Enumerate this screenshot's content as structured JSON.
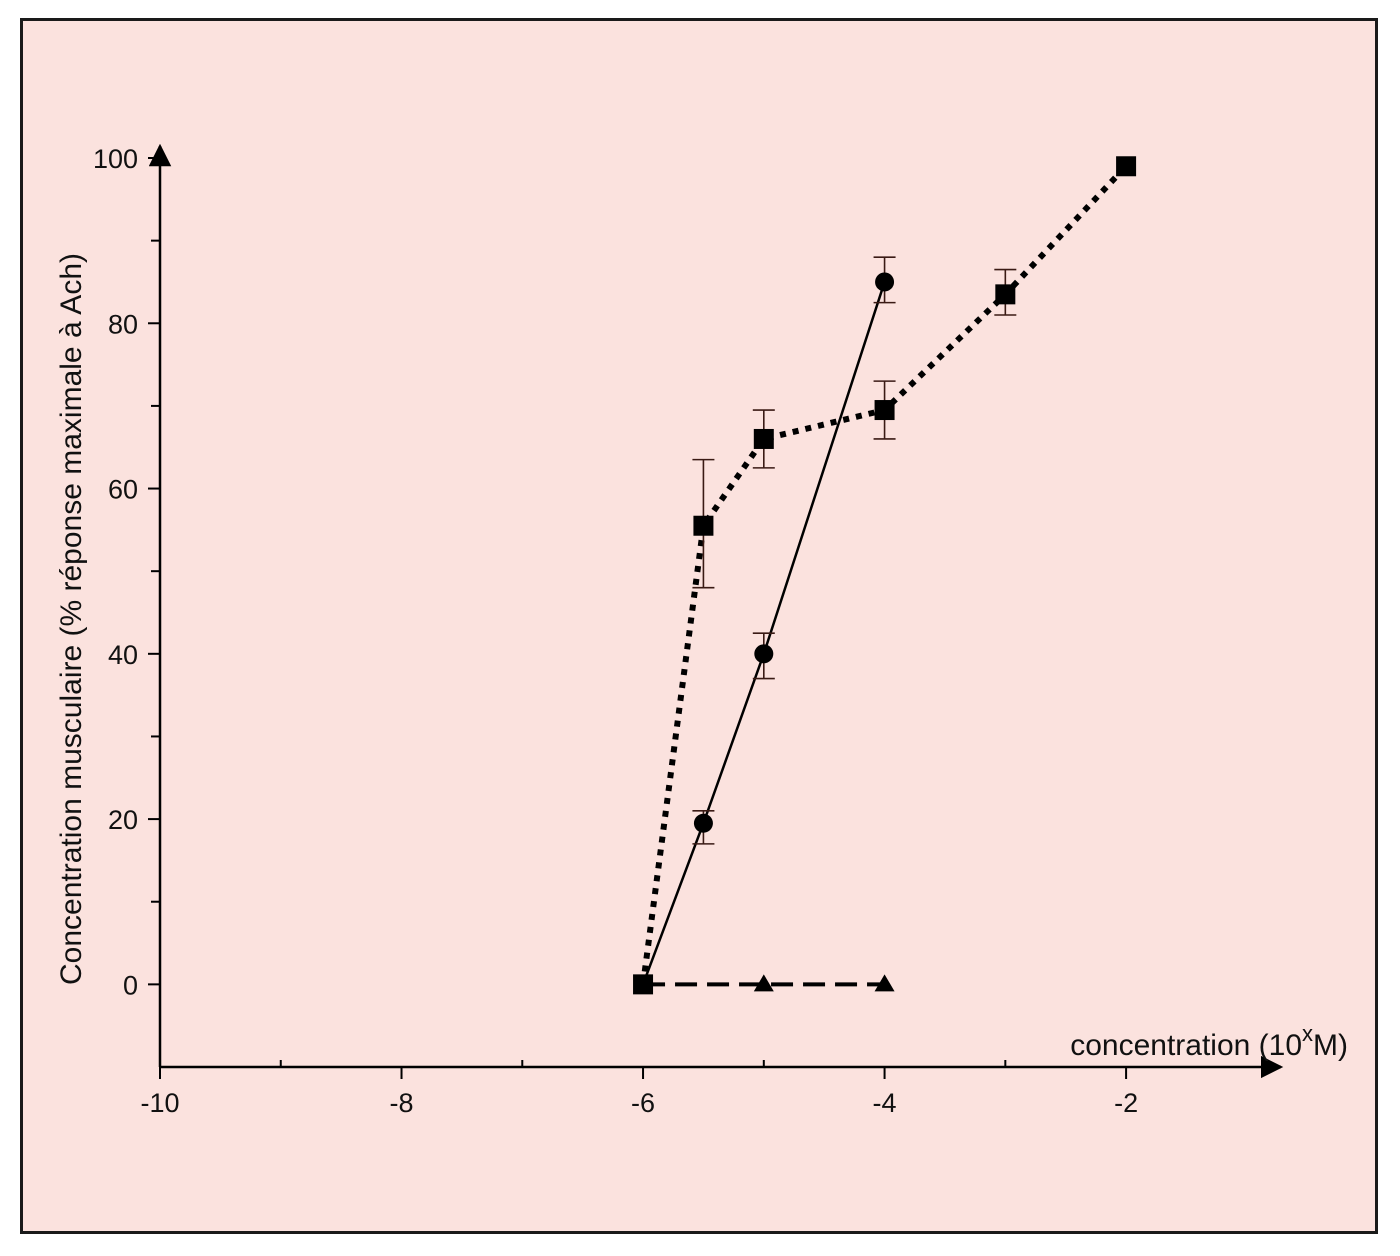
{
  "chart_data": {
    "type": "line",
    "title": "",
    "xlabel": "concentration (10",
    "xlabel_superscript": "x",
    "xlabel_suffix": "M)",
    "ylabel": "Concentration musculaire (% réponse maximale à Ach)",
    "xlim": [
      -10,
      -0.8
    ],
    "ylim": [
      -10,
      100
    ],
    "x_ticks": [
      -10,
      -8,
      -6,
      -4,
      -2
    ],
    "x_tick_labels": [
      "-10",
      "-8",
      "-6",
      "-4",
      "-2"
    ],
    "x_minor_ticks": [
      -9,
      -7,
      -5,
      -3
    ],
    "y_ticks": [
      0,
      20,
      40,
      60,
      80,
      100
    ],
    "y_tick_labels": [
      "0",
      "20",
      "40",
      "60",
      "80",
      "100"
    ],
    "y_minor_ticks": [
      10,
      30,
      50,
      70,
      90
    ],
    "grid": false,
    "series": [
      {
        "marker": "square",
        "line_style": "dotted",
        "color": "#000000",
        "points": [
          {
            "x": -6,
            "y": 0
          },
          {
            "x": -5.5,
            "y": 55.5,
            "err_low": 48,
            "err_high": 63.5
          },
          {
            "x": -5,
            "y": 66,
            "err_low": 62.5,
            "err_high": 69.5
          },
          {
            "x": -4,
            "y": 69.5,
            "err_low": 66,
            "err_high": 73
          },
          {
            "x": -3,
            "y": 83.5,
            "err_low": 81,
            "err_high": 86.5
          },
          {
            "x": -2,
            "y": 99
          }
        ]
      },
      {
        "marker": "circle",
        "line_style": "solid",
        "color": "#000000",
        "points": [
          {
            "x": -6,
            "y": 0
          },
          {
            "x": -5.5,
            "y": 19.5,
            "err_low": 17,
            "err_high": 21
          },
          {
            "x": -5,
            "y": 40,
            "err_low": 37,
            "err_high": 42.5
          },
          {
            "x": -4,
            "y": 85,
            "err_low": 82.5,
            "err_high": 88
          }
        ]
      },
      {
        "marker": "triangle",
        "line_style": "dashed",
        "color": "#000000",
        "points": [
          {
            "x": -6,
            "y": 0
          },
          {
            "x": -5,
            "y": 0
          },
          {
            "x": -4,
            "y": 0
          }
        ]
      }
    ]
  }
}
